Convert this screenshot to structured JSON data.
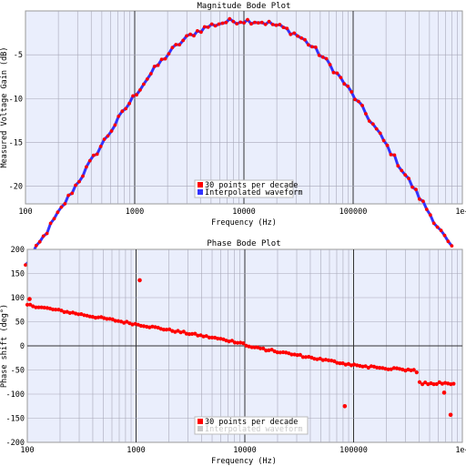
{
  "chart_data": [
    {
      "type": "scatter",
      "title": "Magnitude Bode Plot",
      "xlabel": "Frequency (Hz)",
      "ylabel": "Measured Voltage Gain (dB)",
      "x_scale": "log",
      "xlim": [
        100,
        1000000
      ],
      "ylim": [
        -22,
        0
      ],
      "grid": true,
      "legend_position": "bottom-center",
      "x_ticks": [
        {
          "value": 100,
          "label": "100"
        },
        {
          "value": 1000,
          "label": "1000"
        },
        {
          "value": 10000,
          "label": "10000"
        },
        {
          "value": 100000,
          "label": "100000"
        },
        {
          "value": 1000000,
          "label": "1e+"
        }
      ],
      "y_ticks": [
        {
          "value": -5,
          "label": "-5"
        },
        {
          "value": -10,
          "label": "-10"
        },
        {
          "value": -15,
          "label": "-15"
        },
        {
          "value": -20,
          "label": "-20"
        }
      ],
      "model": {
        "low_corner_hz": 2680,
        "high_corner_hz": 37300,
        "f_start": 100,
        "f_end": 800000
      },
      "series": [
        {
          "name": "30 points per decade",
          "color": "#ff0000",
          "kind": "points"
        },
        {
          "name": "Interpolated waveform",
          "color": "#3333ff",
          "kind": "line"
        }
      ]
    },
    {
      "type": "scatter",
      "title": "Phase Bode Plot",
      "xlabel": "Frequency (Hz)",
      "ylabel": "Phase shift (deg°)",
      "x_scale": "log",
      "xlim": [
        100,
        1000000
      ],
      "ylim": [
        -200,
        200
      ],
      "grid": true,
      "legend_position": "bottom-center",
      "x_ticks": [
        {
          "value": 100,
          "label": "100"
        },
        {
          "value": 1000,
          "label": "1000"
        },
        {
          "value": 10000,
          "label": "10000"
        },
        {
          "value": 100000,
          "label": "100000"
        },
        {
          "value": 1000000,
          "label": "1e+"
        }
      ],
      "y_ticks": [
        {
          "value": 200,
          "label": "200"
        },
        {
          "value": 150,
          "label": "150"
        },
        {
          "value": 100,
          "label": "100"
        },
        {
          "value": 50,
          "label": "50"
        },
        {
          "value": 0,
          "label": "0"
        },
        {
          "value": -50,
          "label": "-50"
        },
        {
          "value": -100,
          "label": "-100"
        },
        {
          "value": -150,
          "label": "-150"
        },
        {
          "value": -200,
          "label": "-200"
        }
      ],
      "series": [
        {
          "name": "30 points per decade",
          "color": "#ff0000",
          "kind": "points"
        },
        {
          "name": "Interpolated waveform",
          "color": "#c8c8c8",
          "kind": "line",
          "faded": true
        }
      ],
      "outliers": [
        {
          "x": 105,
          "y": 97
        },
        {
          "x": 1080,
          "y": 136
        },
        {
          "x": 83000,
          "y": -125
        },
        {
          "x": 680000,
          "y": -97
        },
        {
          "x": 780000,
          "y": -143
        }
      ]
    }
  ]
}
